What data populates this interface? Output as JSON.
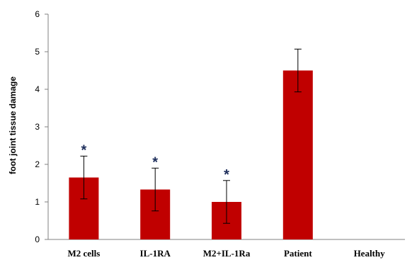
{
  "chart_data": {
    "type": "bar",
    "title": "",
    "xlabel": "",
    "ylabel": "foot joint tissue damage",
    "ylim": [
      0,
      6
    ],
    "yticks": [
      "0",
      "1",
      "2",
      "3",
      "4",
      "5",
      "6"
    ],
    "categories": [
      "M2 cells",
      "IL-1RA",
      "M2+IL-1Ra",
      "Patient",
      "Healthy"
    ],
    "values": [
      1.65,
      1.33,
      1.0,
      4.5,
      0
    ],
    "errors": [
      0.57,
      0.57,
      0.57,
      0.57,
      0
    ],
    "significance": [
      "*",
      "*",
      "*",
      "",
      ""
    ],
    "bar_color": "#c00000",
    "grid": false,
    "legend": "none"
  }
}
